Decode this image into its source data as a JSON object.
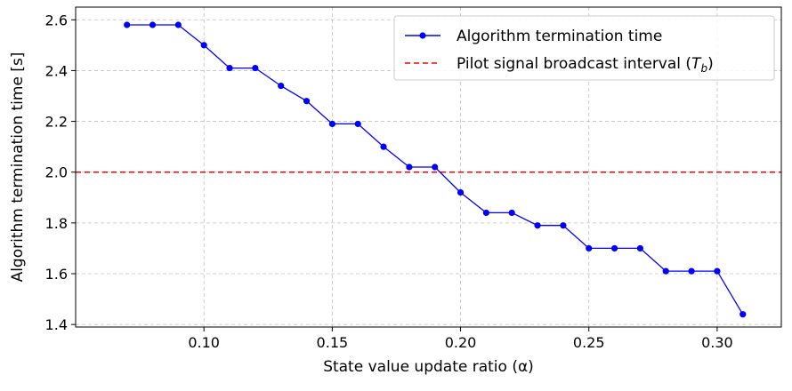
{
  "chart_data": {
    "type": "line",
    "xlabel": "State value update ratio (α)",
    "ylabel": "Algorithm termination time [s]",
    "xlim": [
      0.05,
      0.325
    ],
    "ylim": [
      1.39,
      2.65
    ],
    "xticks": [
      0.1,
      0.15,
      0.2,
      0.25,
      0.3
    ],
    "xtick_labels": [
      "0.10",
      "0.15",
      "0.20",
      "0.25",
      "0.30"
    ],
    "yticks": [
      1.4,
      1.6,
      1.8,
      2.0,
      2.2,
      2.4,
      2.6
    ],
    "ytick_labels": [
      "1.4",
      "1.6",
      "1.8",
      "2.0",
      "2.2",
      "2.4",
      "2.6"
    ],
    "grid": true,
    "legend_position": "top-right",
    "series": [
      {
        "name": "Algorithm termination time",
        "color": "#0000ff",
        "marker": "circle",
        "x": [
          0.07,
          0.08,
          0.09,
          0.1,
          0.11,
          0.12,
          0.13,
          0.14,
          0.15,
          0.16,
          0.17,
          0.18,
          0.19,
          0.2,
          0.21,
          0.22,
          0.23,
          0.24,
          0.25,
          0.26,
          0.27,
          0.28,
          0.29,
          0.3,
          0.31
        ],
        "y": [
          2.58,
          2.58,
          2.58,
          2.5,
          2.41,
          2.41,
          2.34,
          2.28,
          2.19,
          2.19,
          2.1,
          2.02,
          2.02,
          1.92,
          1.84,
          1.84,
          1.79,
          1.79,
          1.7,
          1.7,
          1.7,
          1.61,
          1.61,
          1.61,
          1.44
        ]
      }
    ],
    "reference_line": {
      "name_prefix": "Pilot signal broadcast interval (",
      "name_symbol": "T",
      "name_subscript": "b",
      "name_suffix": ")",
      "y": 2.0,
      "color": "#ff0000",
      "style": "dashed"
    }
  }
}
